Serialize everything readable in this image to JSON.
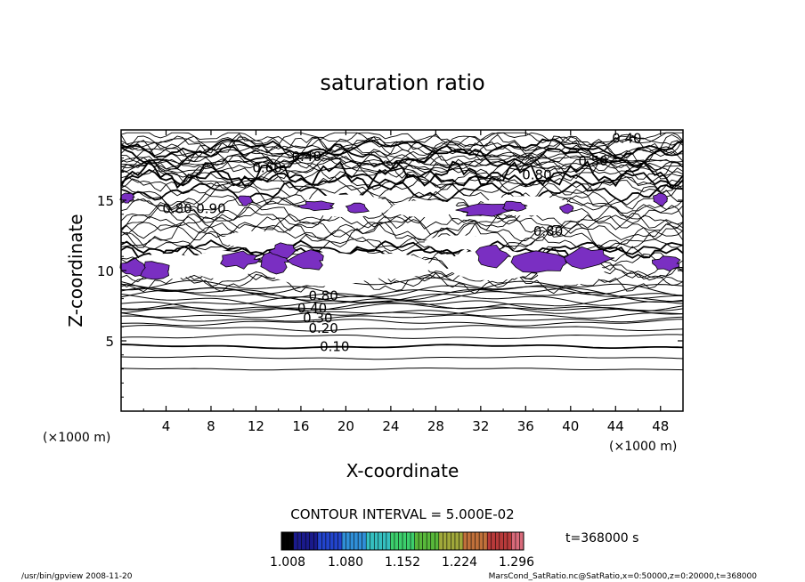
{
  "chart_data": {
    "type": "contour",
    "title": "saturation ratio",
    "xlabel": "X-coordinate",
    "ylabel": "Z-coordinate",
    "x_unit": "(×1000 m)",
    "y_unit": "(×1000 m)",
    "xlim": [
      0,
      50
    ],
    "ylim": [
      0,
      20
    ],
    "x_ticks": [
      "4",
      "8",
      "12",
      "16",
      "20",
      "24",
      "28",
      "32",
      "36",
      "40",
      "44",
      "48"
    ],
    "y_ticks": [
      "5",
      "10",
      "15"
    ],
    "contour_interval_text": "CONTOUR INTERVAL = 5.000E-02",
    "time_label": "t=368000 s",
    "colorbar": {
      "min": 1.008,
      "max": 1.296,
      "tick_labels": [
        "1.008",
        "1.080",
        "1.152",
        "1.224",
        "1.296"
      ],
      "colors": [
        "#000000",
        "#1a1a8c",
        "#2244cc",
        "#2f8fd8",
        "#35c0c0",
        "#3ccf6c",
        "#58b83a",
        "#a0a83a",
        "#c0703a",
        "#b83a3a",
        "#d86a7a"
      ]
    },
    "contour_labels": [
      {
        "text": "0.10",
        "x": 19,
        "z": 4.6
      },
      {
        "text": "0.20",
        "x": 18,
        "z": 5.9
      },
      {
        "text": "0.30",
        "x": 17.5,
        "z": 6.6
      },
      {
        "text": "0.40",
        "x": 17,
        "z": 7.3
      },
      {
        "text": "0.80",
        "x": 18,
        "z": 8.2
      },
      {
        "text": "0.80",
        "x": 5,
        "z": 14.4
      },
      {
        "text": "0.90",
        "x": 8,
        "z": 14.4
      },
      {
        "text": "0.60",
        "x": 13,
        "z": 17.3
      },
      {
        "text": "0.40",
        "x": 16.5,
        "z": 18.1
      },
      {
        "text": "0.80",
        "x": 37,
        "z": 16.8
      },
      {
        "text": "0.50",
        "x": 42,
        "z": 17.8
      },
      {
        "text": "0.40",
        "x": 45,
        "z": 19.4
      },
      {
        "text": "0.80",
        "x": 38,
        "z": 12.8
      }
    ],
    "supersaturated_regions_color": "#7a2fc2",
    "fill_level": 1.0
  },
  "footer": {
    "left": "/usr/bin/gpview   2008-11-20",
    "right": "MarsCond_SatRatio.nc@SatRatio,x=0:50000,z=0:20000,t=368000"
  }
}
